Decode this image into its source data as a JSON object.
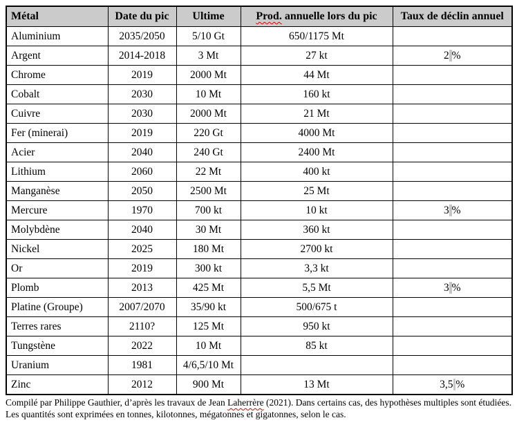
{
  "table": {
    "columns": [
      {
        "key": "metal",
        "label": "Métal"
      },
      {
        "key": "date",
        "label": "Date du pic"
      },
      {
        "key": "ultime",
        "label": "Ultime"
      },
      {
        "key": "prod",
        "label": "Prod. annuelle lors du pic",
        "misspelled": "Prod."
      },
      {
        "key": "taux",
        "label": "Taux de déclin annuel"
      }
    ],
    "rows": [
      {
        "metal": "Aluminium",
        "date": "2035/2050",
        "ultime": "5/10 Gt",
        "prod": "650/1175 Mt",
        "taux": ""
      },
      {
        "metal": "Argent",
        "date": "2014-2018",
        "ultime": "3 Mt",
        "prod": "27 kt",
        "taux": "2 %"
      },
      {
        "metal": "Chrome",
        "date": "2019",
        "ultime": "2000 Mt",
        "prod": "44 Mt",
        "taux": ""
      },
      {
        "metal": "Cobalt",
        "date": "2030",
        "ultime": "10 Mt",
        "prod": "160 kt",
        "taux": ""
      },
      {
        "metal": "Cuivre",
        "date": "2030",
        "ultime": "2000 Mt",
        "prod": "21 Mt",
        "taux": ""
      },
      {
        "metal": "Fer (minerai)",
        "date": "2019",
        "ultime": "220 Gt",
        "prod": "4000 Mt",
        "taux": ""
      },
      {
        "metal": "Acier",
        "date": "2040",
        "ultime": "240 Gt",
        "prod": "2400 Mt",
        "taux": ""
      },
      {
        "metal": "Lithium",
        "date": "2060",
        "ultime": "22 Mt",
        "prod": "400 kt",
        "taux": ""
      },
      {
        "metal": "Manganèse",
        "date": "2050",
        "ultime": "2500 Mt",
        "prod": "25 Mt",
        "taux": ""
      },
      {
        "metal": "Mercure",
        "date": "1970",
        "ultime": "700 kt",
        "prod": "10 kt",
        "taux": "3 %"
      },
      {
        "metal": "Molybdène",
        "date": "2040",
        "ultime": "30 Mt",
        "prod": "360 kt",
        "taux": ""
      },
      {
        "metal": "Nickel",
        "date": "2025",
        "ultime": "180 Mt",
        "prod": "2700 kt",
        "taux": ""
      },
      {
        "metal": "Or",
        "date": "2019",
        "ultime": "300 kt",
        "prod": "3,3 kt",
        "taux": ""
      },
      {
        "metal": "Plomb",
        "date": "2013",
        "ultime": "425 Mt",
        "prod": "5,5 Mt",
        "taux": "3 %"
      },
      {
        "metal": "Platine (Groupe)",
        "date": "2007/2070",
        "ultime": "35/90 kt",
        "prod": "500/675 t",
        "taux": ""
      },
      {
        "metal": "Terres rares",
        "date": "2110?",
        "ultime": "125 Mt",
        "prod": "950 kt",
        "taux": ""
      },
      {
        "metal": "Tungstène",
        "date": "2022",
        "ultime": "10 Mt",
        "prod": "85 kt",
        "taux": ""
      },
      {
        "metal": "Uranium",
        "date": "1981",
        "ultime": "4/6,5/10 Mt",
        "prod": "",
        "taux": ""
      },
      {
        "metal": "Zinc",
        "date": "2012",
        "ultime": "900 Mt",
        "prod": "13 Mt",
        "taux": "3,5 %"
      }
    ]
  },
  "footer": {
    "text": "Compilé par Philippe Gauthier, d’après les travaux de Jean Laherrère (2021). Dans certains cas, des hypothèses multiples sont étudiées. Les quantités sont exprimées en tonnes, kilotonnes, mégatonnes et gigatonnes, selon le cas.",
    "misspelled": "Laherrère"
  },
  "colors": {
    "header_bg": "#cbcbcb",
    "border": "#000000",
    "squiggle": "#dd0000",
    "nbsp_mark": "#c6c6c6"
  }
}
